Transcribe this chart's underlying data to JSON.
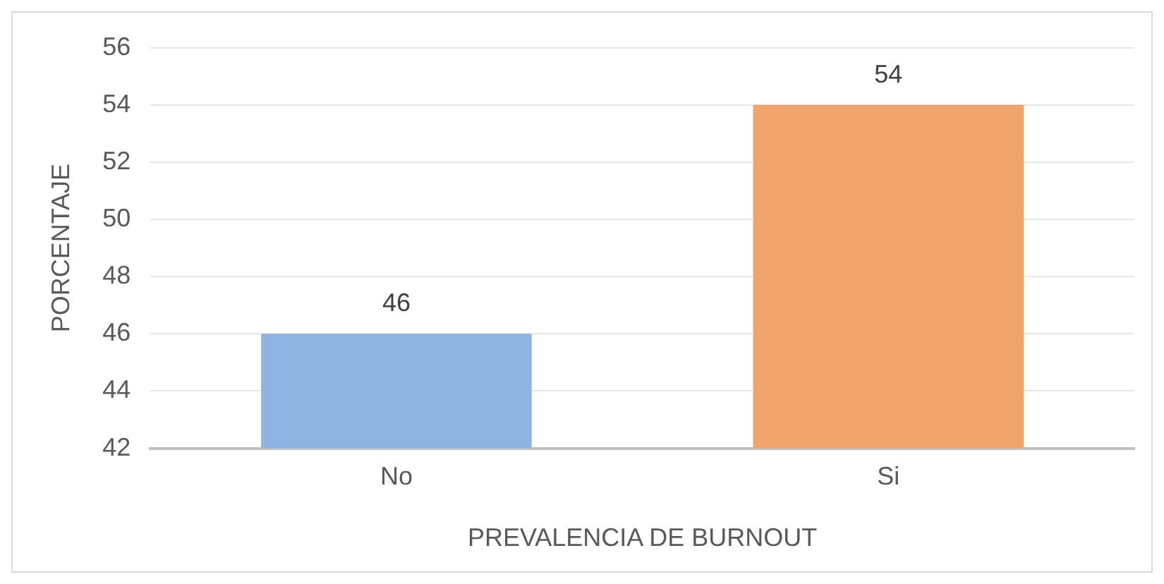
{
  "chart_data": {
    "type": "bar",
    "xlabel": "PREVALENCIA DE BURNOUT",
    "ylabel": "PORCENTAJE",
    "categories": [
      "No",
      "Si"
    ],
    "values": [
      46,
      54
    ],
    "colors": [
      "#8db4e2",
      "#f0a46c"
    ],
    "ylim": [
      42,
      56
    ],
    "yticks": [
      42,
      44,
      46,
      48,
      50,
      52,
      54,
      56
    ],
    "grid": "y",
    "data_labels": true,
    "legend": false
  }
}
